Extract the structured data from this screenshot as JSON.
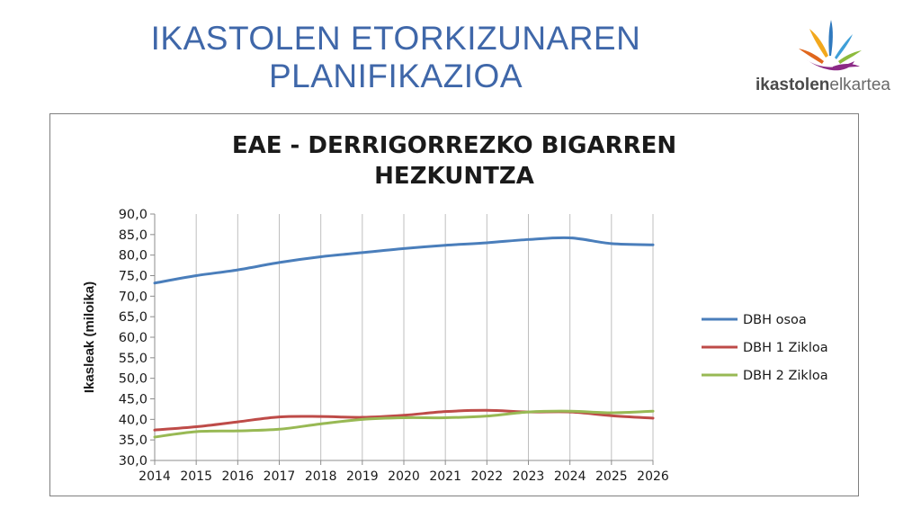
{
  "slide": {
    "title_line1": "IKASTOLEN ETORKIZUNAREN",
    "title_line2": "PLANIFIKAZIOA"
  },
  "logo": {
    "text_bold": "ikastolen",
    "text_light": "elkartea",
    "icon": "ikastolen-elkartea-flame-logo",
    "colors": [
      "#f2a81d",
      "#2f79be",
      "#8dbb3c",
      "#e0671d",
      "#8c2a86",
      "#3f9fd8"
    ]
  },
  "chart_data": {
    "type": "line",
    "title_line1": "EAE - DERRIGORREZKO BIGARREN",
    "title_line2": "HEZKUNTZA",
    "ylabel": "Ikasleak (miloika)",
    "xlabel": "",
    "ylim": [
      30,
      90
    ],
    "yticks": [
      "30,0",
      "35,0",
      "40,0",
      "45,0",
      "50,0",
      "55,0",
      "60,0",
      "65,0",
      "70,0",
      "75,0",
      "80,0",
      "85,0",
      "90,0"
    ],
    "categories": [
      "2014",
      "2015",
      "2016",
      "2017",
      "2018",
      "2019",
      "2020",
      "2021",
      "2022",
      "2023",
      "2024",
      "2025",
      "2026"
    ],
    "grid": "vertical",
    "legend_position": "right",
    "series": [
      {
        "name": "DBH osoa",
        "color": "#4a7ebb",
        "values": [
          73.2,
          75.0,
          76.4,
          78.2,
          79.6,
          80.6,
          81.6,
          82.4,
          83.0,
          83.8,
          84.2,
          82.8,
          82.5
        ]
      },
      {
        "name": "DBH 1 Zikloa",
        "color": "#be4b48",
        "values": [
          37.4,
          38.2,
          39.4,
          40.6,
          40.7,
          40.5,
          41.0,
          41.9,
          42.2,
          41.8,
          41.8,
          40.9,
          40.3
        ]
      },
      {
        "name": "DBH 2 Zikloa",
        "color": "#98b954",
        "values": [
          35.7,
          37.0,
          37.2,
          37.6,
          38.9,
          40.0,
          40.4,
          40.4,
          40.8,
          41.8,
          42.0,
          41.6,
          42.0
        ]
      }
    ]
  }
}
